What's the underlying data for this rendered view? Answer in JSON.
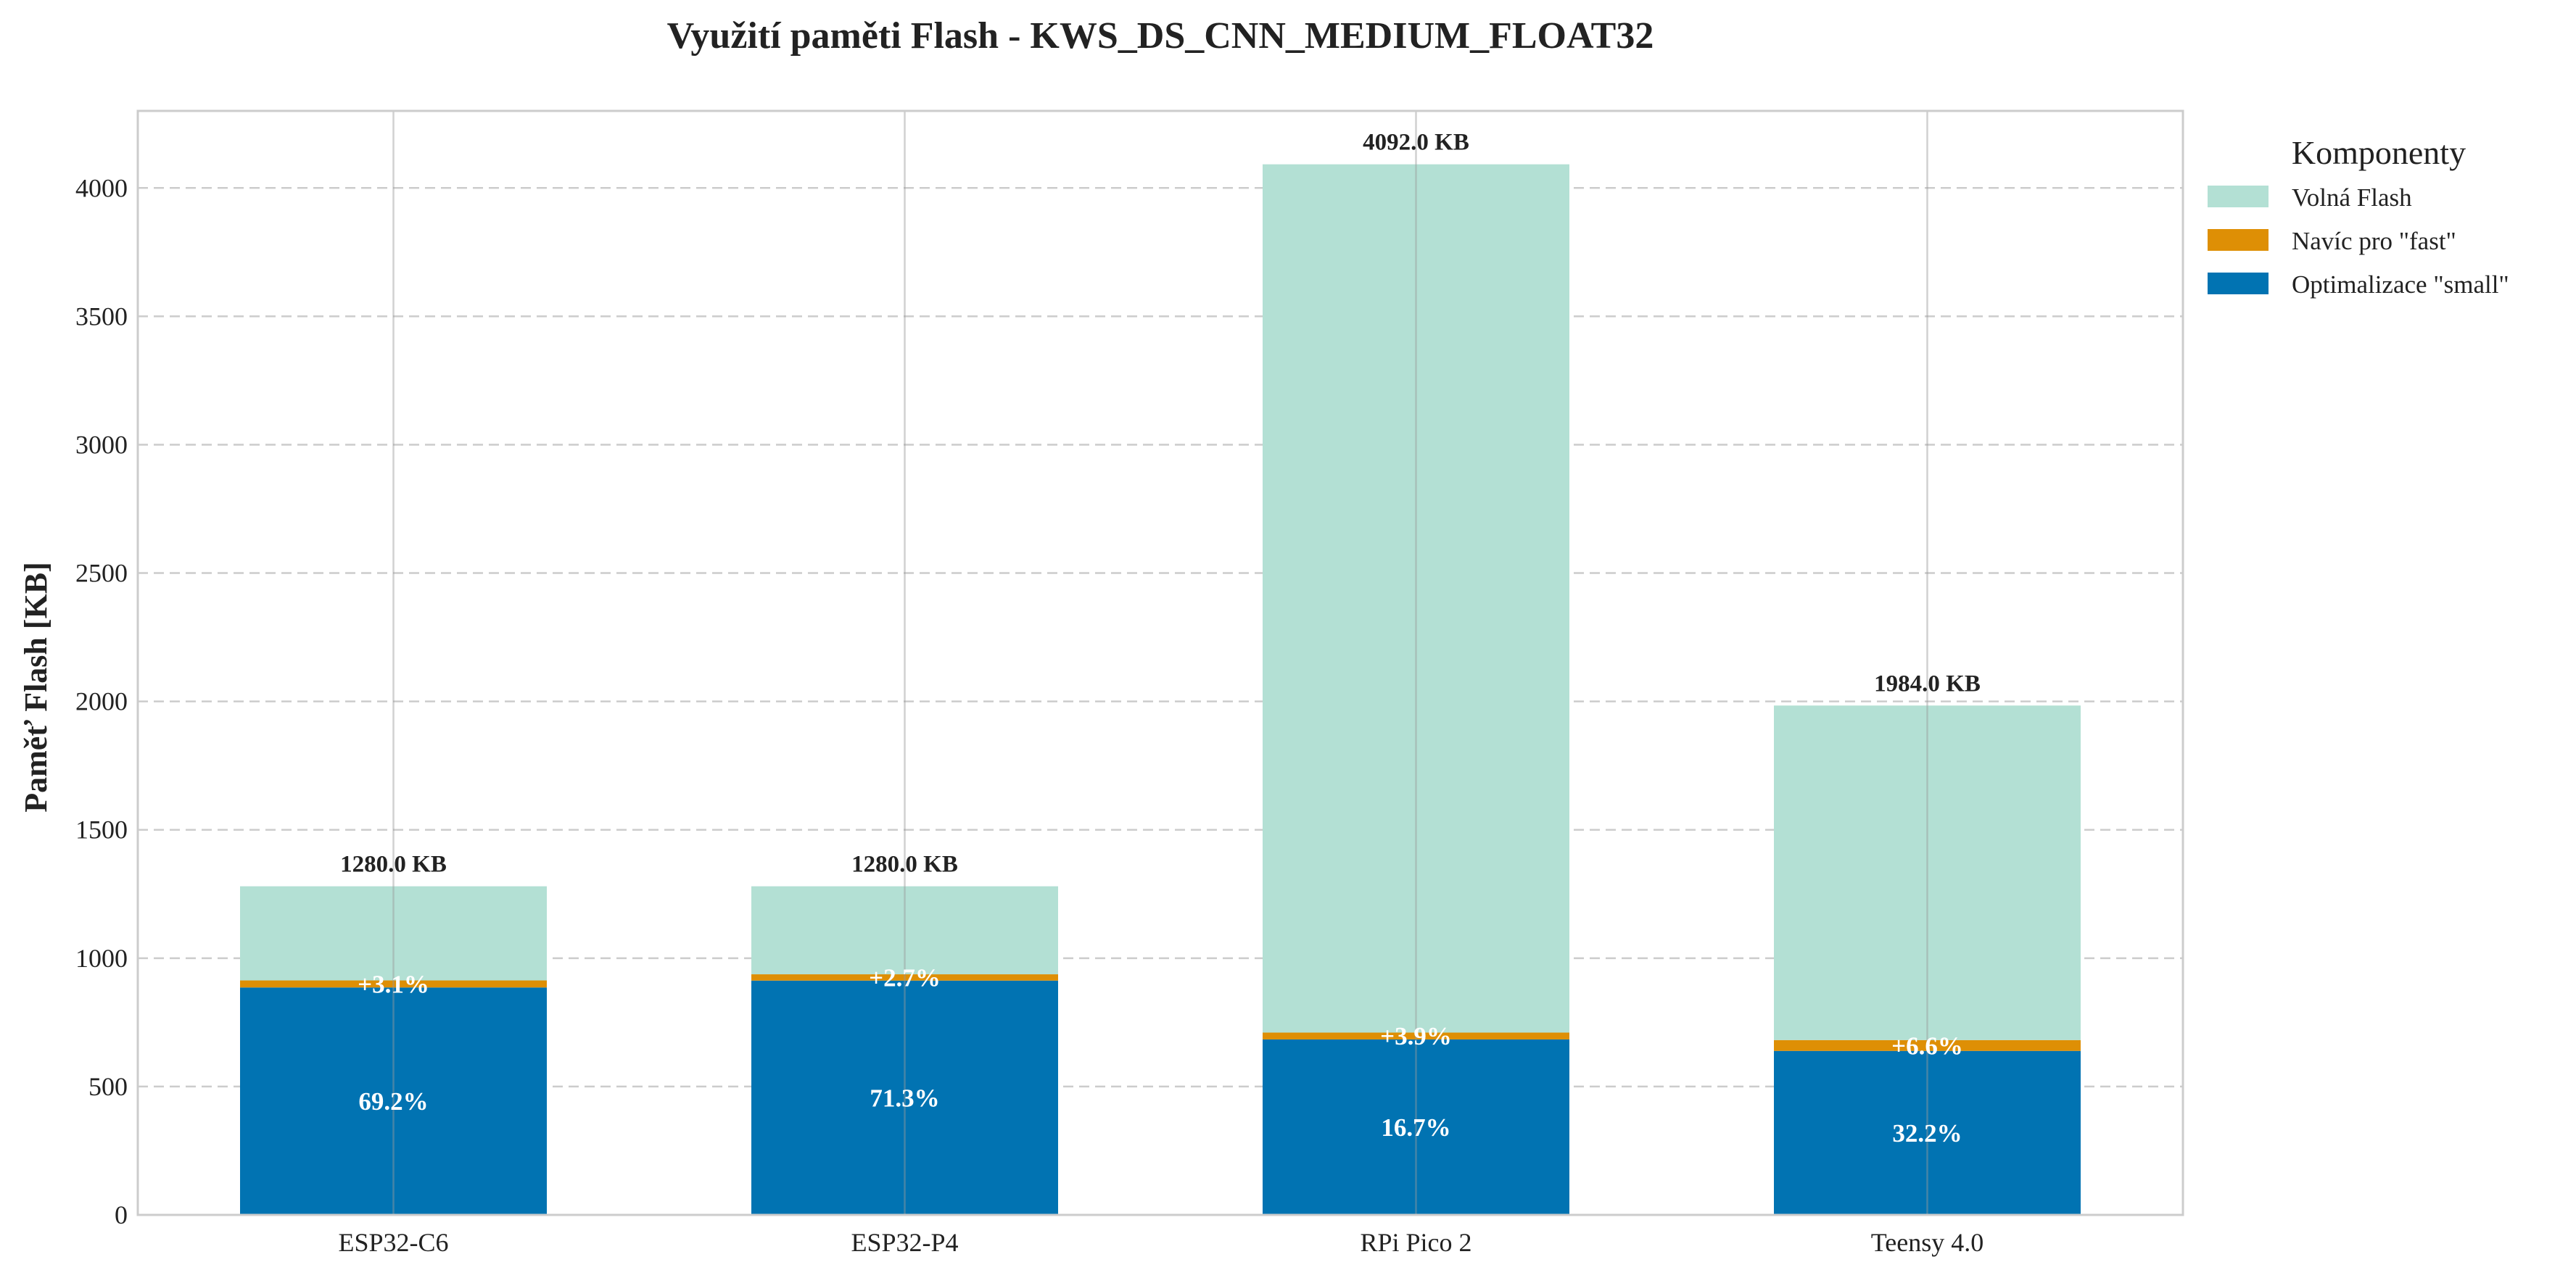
{
  "chart_data": {
    "type": "bar",
    "stacked": true,
    "title": "Využití paměti Flash - KWS_DS_CNN_MEDIUM_FLOAT32",
    "xlabel": "",
    "ylabel": "Paměť Flash [KB]",
    "ylim": [
      0,
      4300
    ],
    "yticks": [
      0,
      500,
      1000,
      1500,
      2000,
      2500,
      3000,
      3500,
      4000
    ],
    "grid": "y-dashed",
    "legend_placement": "outside-right",
    "categories": [
      "ESP32-C6",
      "ESP32-P4",
      "RPi Pico 2",
      "Teensy 4.0"
    ],
    "totals": [
      1280.0,
      1280.0,
      4092.0,
      1984.0
    ],
    "total_labels": [
      "1280.0 KB",
      "1280.0 KB",
      "4092.0 KB",
      "1984.0 KB"
    ],
    "series": [
      {
        "name": "Optimalizace \"small\"",
        "color": "#0173b2",
        "values": [
          885.8,
          912.6,
          683.4,
          638.8
        ],
        "labels": [
          "69.2%",
          "71.3%",
          "16.7%",
          "32.2%"
        ]
      },
      {
        "name": "Navíc pro \"fast\"",
        "color": "#de8f05",
        "values": [
          27.5,
          24.6,
          26.7,
          42.2
        ],
        "labels": [
          "+3.1%",
          "+2.7%",
          "+3.9%",
          "+6.6%"
        ]
      },
      {
        "name": "Volná Flash",
        "color": "#b3e0d4",
        "values": [
          366.7,
          342.8,
          3381.9,
          1303.0
        ]
      }
    ],
    "legend": {
      "title": "Komponenty",
      "order": [
        "Volná Flash",
        "Navíc pro \"fast\"",
        "Optimalizace \"small\""
      ]
    }
  }
}
